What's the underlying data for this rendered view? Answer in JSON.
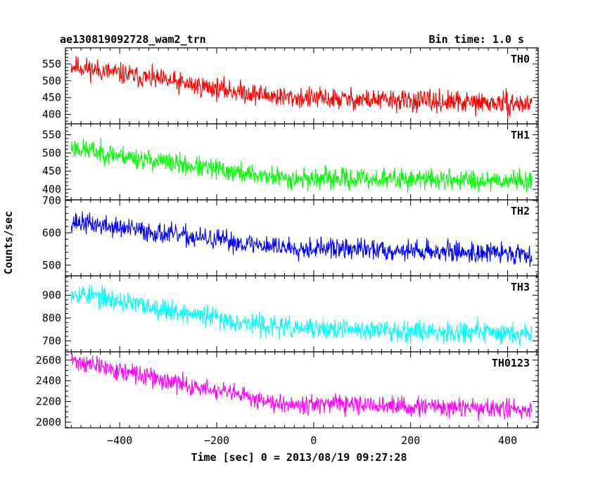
{
  "header": {
    "left_title": "ae130819092728_wam2_trn",
    "right_title": "Bin time: 1.0 s"
  },
  "chart_data": {
    "type": "line",
    "xlabel": "Time [sec] 0 = 2013/08/19 09:27:28",
    "ylabel": "Counts/sec",
    "xlim": [
      -512,
      463
    ],
    "x_ticks": [
      -400,
      -200,
      0,
      200,
      400
    ],
    "x_tick_labels": [
      "−400",
      "−200",
      "0",
      "200",
      "400"
    ],
    "x_data_range": [
      -500,
      450
    ],
    "panels": [
      {
        "name": "TH0",
        "color": "#ff0000",
        "ylim": [
          372,
          598
        ],
        "y_ticks": [
          400,
          450,
          500,
          550
        ],
        "minor_step": 10,
        "trend": {
          "start": 545,
          "mid_x": -50,
          "mid": 450,
          "end": 430
        },
        "noise": 28,
        "seed": 11
      },
      {
        "name": "TH1",
        "color": "#00ff00",
        "ylim": [
          371,
          580
        ],
        "y_ticks": [
          400,
          450,
          500,
          550
        ],
        "minor_step": 10,
        "trend": {
          "start": 515,
          "mid_x": -50,
          "mid": 430,
          "end": 425
        },
        "noise": 25,
        "seed": 23
      },
      {
        "name": "TH2",
        "color": "#0000ff",
        "ylim": [
          467,
          702
        ],
        "y_ticks": [
          500,
          600,
          700
        ],
        "minor_step": 20,
        "trend": {
          "start": 635,
          "mid_x": -50,
          "mid": 555,
          "end": 535
        },
        "noise": 28,
        "seed": 37
      },
      {
        "name": "TH3",
        "color": "#00ffff",
        "ylim": [
          652,
          985
        ],
        "y_ticks": [
          700,
          800,
          900
        ],
        "minor_step": 20,
        "trend": {
          "start": 915,
          "mid_x": -50,
          "mid": 755,
          "end": 735
        },
        "noise": 40,
        "seed": 53
      },
      {
        "name": "TH0123",
        "color": "#ff00ff",
        "ylim": [
          1945,
          2680
        ],
        "y_ticks": [
          2000,
          2200,
          2400,
          2600
        ],
        "minor_step": 50,
        "trend": {
          "start": 2600,
          "mid_x": -50,
          "mid": 2180,
          "end": 2120
        },
        "noise": 80,
        "seed": 71
      }
    ]
  }
}
